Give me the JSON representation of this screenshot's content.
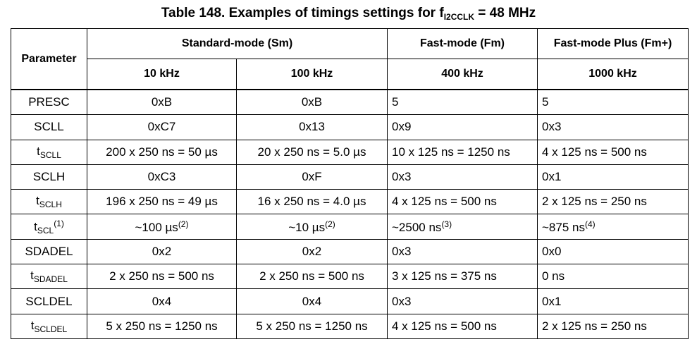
{
  "title": {
    "text": "Table 148. Examples of timings settings for f",
    "sub": "I2CCLK",
    "after": " = 48 MHz"
  },
  "header": {
    "parameter": "Parameter",
    "groups": [
      "Standard-mode (Sm)",
      "Fast-mode (Fm)",
      "Fast-mode Plus (Fm+)"
    ],
    "frequencies": [
      "10 kHz",
      "100 kHz",
      "400 kHz",
      "1000 kHz"
    ]
  },
  "rows": [
    {
      "parameter": {
        "text": "PRESC"
      },
      "values": [
        {
          "text": "0xB"
        },
        {
          "text": "0xB"
        },
        {
          "text": "5"
        },
        {
          "text": "5"
        }
      ]
    },
    {
      "parameter": {
        "text": "SCLL"
      },
      "values": [
        {
          "text": "0xC7"
        },
        {
          "text": "0x13"
        },
        {
          "text": "0x9"
        },
        {
          "text": "0x3"
        }
      ]
    },
    {
      "parameter": {
        "text": "t",
        "sub": "SCLL"
      },
      "values": [
        {
          "text": "200 x 250 ns = 50 µs"
        },
        {
          "text": "20 x 250 ns = 5.0 µs"
        },
        {
          "text": "10 x 125 ns = 1250 ns"
        },
        {
          "text": "4 x 125 ns = 500 ns"
        }
      ]
    },
    {
      "parameter": {
        "text": "SCLH"
      },
      "values": [
        {
          "text": "0xC3"
        },
        {
          "text": "0xF"
        },
        {
          "text": "0x3"
        },
        {
          "text": "0x1"
        }
      ]
    },
    {
      "parameter": {
        "text": "t",
        "sub": "SCLH"
      },
      "values": [
        {
          "text": "196 x 250 ns = 49 µs"
        },
        {
          "text": "16 x 250 ns = 4.0 µs"
        },
        {
          "text": "4 x 125 ns = 500 ns"
        },
        {
          "text": "2 x 125 ns = 250 ns"
        }
      ]
    },
    {
      "parameter": {
        "text": "t",
        "sub": "SCL",
        "sup": "(1)"
      },
      "values": [
        {
          "text": "~100 µs",
          "sup": "(2)"
        },
        {
          "text": "~10 µs",
          "sup": "(2)"
        },
        {
          "text": "~2500 ns",
          "sup": "(3)"
        },
        {
          "text": "~875 ns",
          "sup": "(4)"
        }
      ]
    },
    {
      "parameter": {
        "text": "SDADEL"
      },
      "values": [
        {
          "text": "0x2"
        },
        {
          "text": "0x2"
        },
        {
          "text": "0x3"
        },
        {
          "text": "0x0"
        }
      ]
    },
    {
      "parameter": {
        "text": "t",
        "sub": "SDADEL"
      },
      "values": [
        {
          "text": "2 x 250 ns = 500 ns"
        },
        {
          "text": "2 x 250 ns = 500 ns"
        },
        {
          "text": "3 x 125 ns = 375 ns"
        },
        {
          "text": "0 ns"
        }
      ]
    },
    {
      "parameter": {
        "text": "SCLDEL"
      },
      "values": [
        {
          "text": "0x4"
        },
        {
          "text": "0x4"
        },
        {
          "text": "0x3"
        },
        {
          "text": "0x1"
        }
      ]
    },
    {
      "parameter": {
        "text": "t",
        "sub": "SCLDEL"
      },
      "values": [
        {
          "text": "5 x 250 ns = 1250 ns"
        },
        {
          "text": "5 x 250 ns = 1250 ns"
        },
        {
          "text": "4 x 125 ns = 500 ns"
        },
        {
          "text": "2 x 125 ns = 250 ns"
        }
      ]
    }
  ]
}
